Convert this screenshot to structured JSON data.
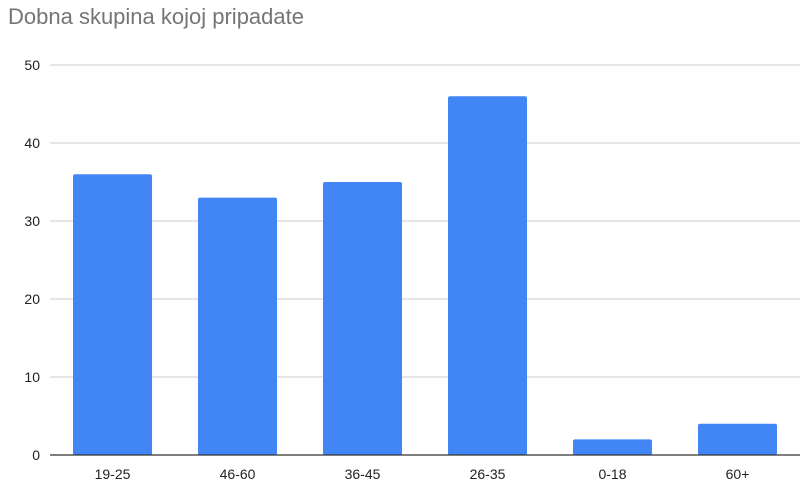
{
  "chart_data": {
    "type": "bar",
    "title": "Dobna skupina kojoj pripadate",
    "xlabel": "",
    "ylabel": "",
    "categories": [
      "19-25",
      "46-60",
      "36-45",
      "26-35",
      "0-18",
      "60+"
    ],
    "values": [
      36,
      33,
      35,
      46,
      2,
      4
    ],
    "ylim": [
      0,
      50
    ],
    "yticks": [
      "0",
      "10",
      "20",
      "30",
      "40",
      "50"
    ],
    "grid": true,
    "legend": "none",
    "bar_color": "#4285f4",
    "grid_color": "#cccccc",
    "axis_color": "#333333"
  }
}
